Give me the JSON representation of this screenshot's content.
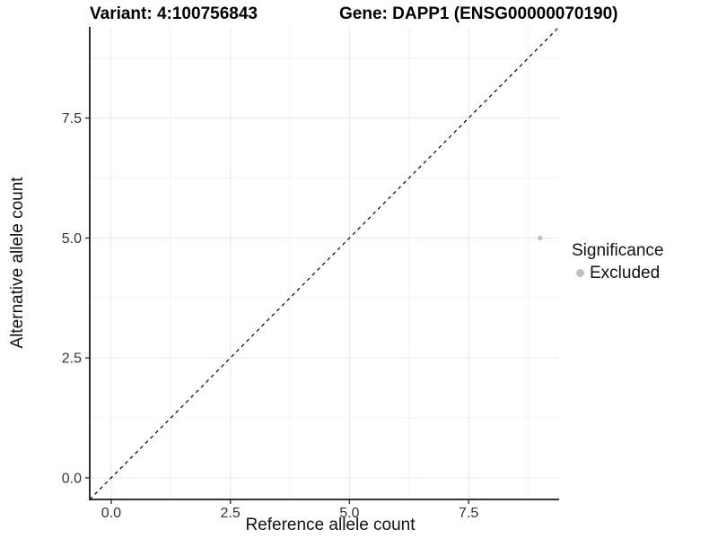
{
  "titles": {
    "variant": "Variant: 4:100756843",
    "gene": "Gene: DAPP1 (ENSG00000070190)"
  },
  "chart_data": {
    "type": "scatter",
    "xlabel": "Reference allele count",
    "ylabel": "Alternative allele count",
    "xlim": [
      -0.45,
      9.4
    ],
    "ylim": [
      -0.45,
      9.4
    ],
    "x_ticks": [
      0,
      2.5,
      5,
      7.5
    ],
    "y_ticks": [
      0,
      2.5,
      5,
      7.5
    ],
    "x_tick_labels": [
      "0.0",
      "2.5",
      "5.0",
      "7.5"
    ],
    "y_tick_labels": [
      "0.0",
      "2.5",
      "5.0",
      "7.5"
    ],
    "grid": "major and minor, light gray, white panel, no top/right border",
    "points": [
      {
        "x": 9,
        "y": 5,
        "significance": "Excluded",
        "color": "#bebebe",
        "radius": 2.6
      }
    ],
    "reference_line": {
      "type": "identity",
      "slope": 1,
      "intercept": 0,
      "style": "dashed",
      "color": "#000000"
    },
    "legend": {
      "title": "Significance",
      "position": "right",
      "items": [
        {
          "label": "Excluded",
          "color": "#bebebe",
          "marker": "circle"
        }
      ]
    }
  },
  "colors": {
    "background": "#ffffff",
    "axis_line": "#1a1a1a",
    "tick_mark": "#333333",
    "tick_text": "#333333",
    "grid_major": "#e6e6e6",
    "grid_minor": "#f3f3f3",
    "point": "#bebebe"
  }
}
